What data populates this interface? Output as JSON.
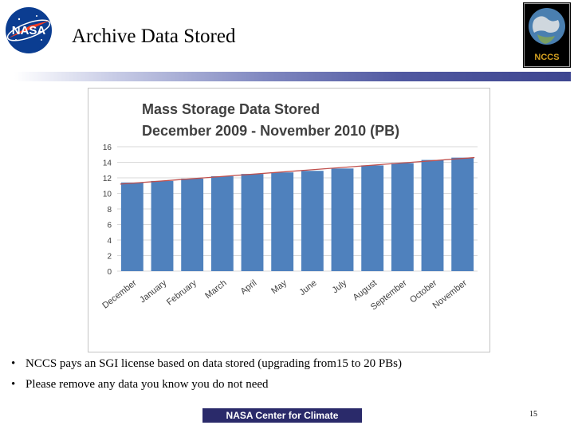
{
  "slide": {
    "title": "Archive Data Stored",
    "bullets": [
      "NCCS pays an SGI license based on data stored (upgrading from15 to 20 PBs)",
      "Please remove any data you know you do not need"
    ],
    "footer_logo_text": "NASA Center for Climate Simulation",
    "page_number": "15"
  },
  "logos": {
    "nasa": {
      "icon": "nasa-meatball-icon",
      "text": "NASA"
    },
    "nccs": {
      "icon": "nccs-globe-icon"
    }
  },
  "colors": {
    "bar": "#4f81bd",
    "trendline": "#c0504d",
    "title_rule": "#3e4690",
    "footer_bg": "#2a2a6a"
  },
  "chart_data": {
    "type": "bar",
    "title": "Mass Storage Data Stored",
    "subtitle": "December 2009 - November 2010 (PB)",
    "categories": [
      "December",
      "January",
      "February",
      "March",
      "April",
      "May",
      "June",
      "July",
      "August",
      "September",
      "October",
      "November"
    ],
    "values": [
      11.4,
      11.6,
      11.9,
      12.2,
      12.5,
      12.7,
      12.9,
      13.2,
      13.6,
      13.9,
      14.3,
      14.6
    ],
    "trendline": true,
    "ylim": [
      0,
      16
    ],
    "yticks": [
      0,
      2,
      4,
      6,
      8,
      10,
      12,
      14,
      16
    ],
    "grid": true,
    "legend": "none"
  }
}
